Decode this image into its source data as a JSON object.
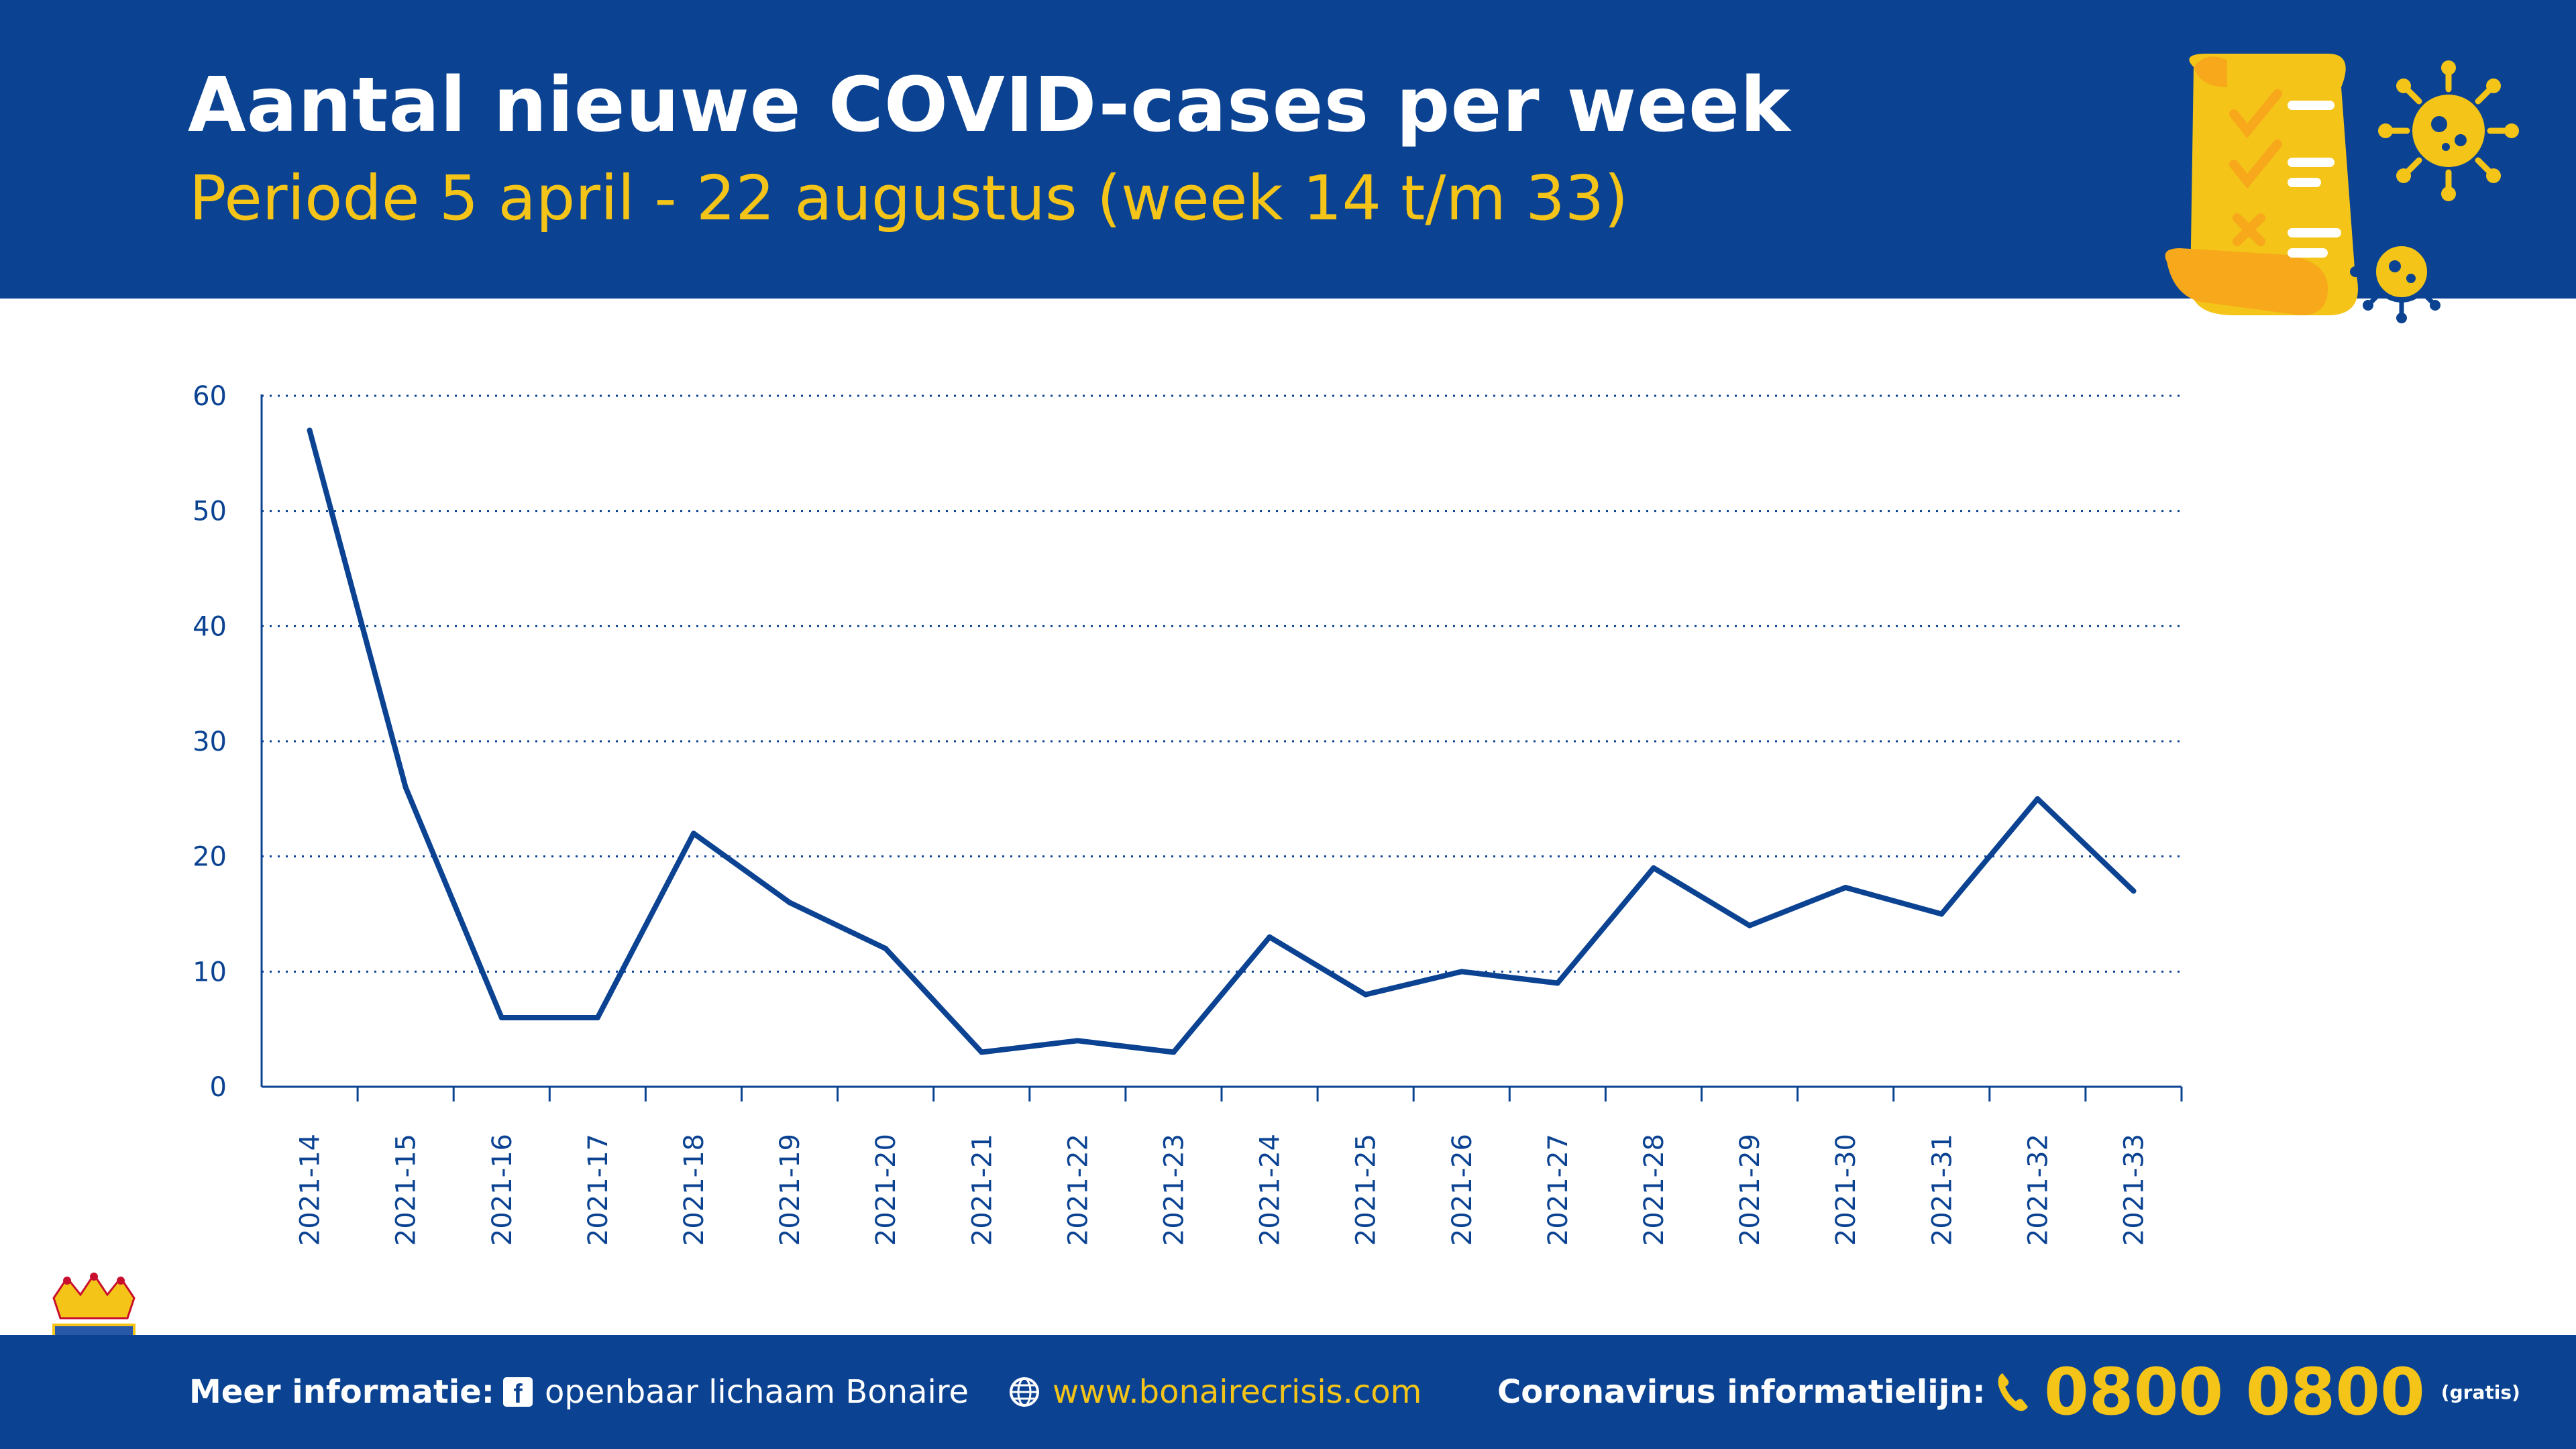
{
  "header": {
    "title": "Aantal nieuwe COVID-cases per week",
    "subtitle": "Periode 5 april - 22 augustus (week 14 t/m 33)"
  },
  "chart_data": {
    "type": "line",
    "categories": [
      "2021-14",
      "2021-15",
      "2021-16",
      "2021-17",
      "2021-18",
      "2021-19",
      "2021-20",
      "2021-21",
      "2021-22",
      "2021-23",
      "2021-24",
      "2021-25",
      "2021-26",
      "2021-27",
      "2021-28",
      "2021-29",
      "2021-30",
      "2021-31",
      "2021-32",
      "2021-33"
    ],
    "series": [
      {
        "values": [
          57,
          26,
          6,
          6,
          22,
          16,
          12,
          3,
          4,
          3,
          13,
          8,
          10,
          9,
          19,
          14,
          17.3,
          15,
          25,
          17
        ]
      }
    ],
    "yticks": [
      "0",
      "10",
      "20",
      "30",
      "40",
      "50",
      "60"
    ],
    "ylim": [
      0,
      60
    ],
    "grid": "horizontal dotted",
    "line_color": "#0b4392"
  },
  "footer": {
    "meer_label": "Meer informatie:",
    "facebook_text": "openbaar lichaam Bonaire",
    "website": "www.bonairecrisis.com",
    "info_label": "Coronavirus informatielijn:",
    "phone": "0800 0800",
    "gratis": "(gratis)"
  },
  "icons": [
    "facebook-icon",
    "globe-icon",
    "phone-icon",
    "checklist-scroll-illustration",
    "virus-icon",
    "bonaire-crest-logo"
  ],
  "colors": {
    "brand_blue": "#0b4392",
    "accent_yellow": "#f4c418",
    "scroll_orange": "#f7a81b"
  }
}
